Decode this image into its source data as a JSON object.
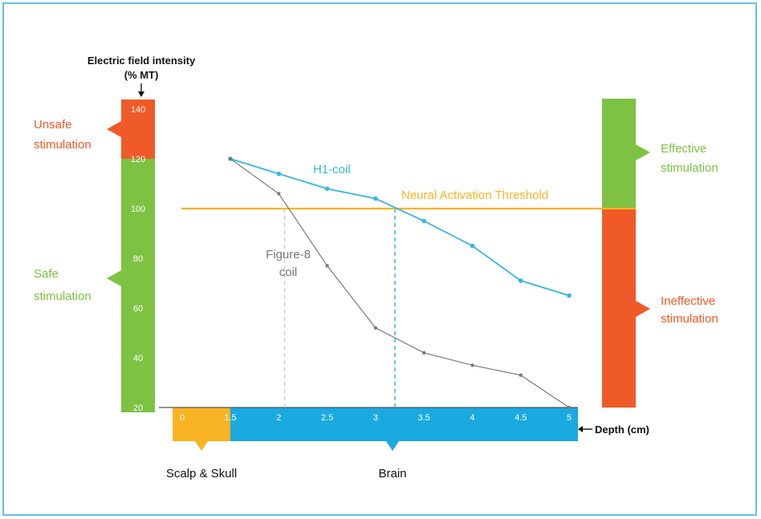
{
  "chart_data": {
    "type": "line",
    "title": "",
    "ylabel_line1": "Electric field intensity",
    "ylabel_line2": "(% MT)",
    "xlabel": "Depth (cm)",
    "x_ticks": [
      "0",
      "1.5",
      "2",
      "2.5",
      "3",
      "3.5",
      "4",
      "4.5",
      "5"
    ],
    "y_ticks": [
      "20",
      "40",
      "60",
      "80",
      "100",
      "120",
      "140"
    ],
    "xlim": [
      0,
      5
    ],
    "ylim": [
      20,
      140
    ],
    "grid": false,
    "threshold": {
      "label": "Neural Activation Threshold",
      "value": 100,
      "color": "#f8b422"
    },
    "series": [
      {
        "name": "H1-coil",
        "color": "#35b6e0",
        "x": [
          1.5,
          2,
          2.5,
          3,
          3.5,
          4,
          4.5,
          5
        ],
        "y": [
          120,
          114,
          108,
          104,
          95,
          85,
          71,
          65
        ]
      },
      {
        "name": "Figure-8 coil",
        "name_line1": "Figure-8",
        "name_line2": "coil",
        "color": "#7a7a7a",
        "x": [
          1.5,
          2,
          2.5,
          3,
          3.5,
          4,
          4.5,
          5
        ],
        "y": [
          120,
          106,
          77,
          52,
          42,
          37,
          33,
          20
        ]
      }
    ],
    "intersections": [
      {
        "series": "Figure-8 coil",
        "x": 2.06
      },
      {
        "series": "H1-coil",
        "x": 3.2
      }
    ],
    "left_scale": {
      "unsafe": {
        "line1": "Unsafe",
        "line2": "stimulation",
        "color": "#ef5a28",
        "from": 120,
        "to": 140
      },
      "safe": {
        "line1": "Safe",
        "line2": "stimulation",
        "color": "#7dc242",
        "from": 20,
        "to": 120
      }
    },
    "right_scale": {
      "effective": {
        "line1": "Effective",
        "line2": "stimulation",
        "color": "#7dc242",
        "from": 100,
        "to": 140
      },
      "ineffective": {
        "line1": "Ineffective",
        "line2": "stimulation",
        "color": "#ef5a28",
        "from": 20,
        "to": 100
      }
    },
    "regions": [
      {
        "label": "Scalp & Skull",
        "color": "#f8b422",
        "from": 0,
        "to": 1.5
      },
      {
        "label": "Brain",
        "color": "#1ba9e1",
        "from": 1.5,
        "to": 5
      }
    ]
  }
}
